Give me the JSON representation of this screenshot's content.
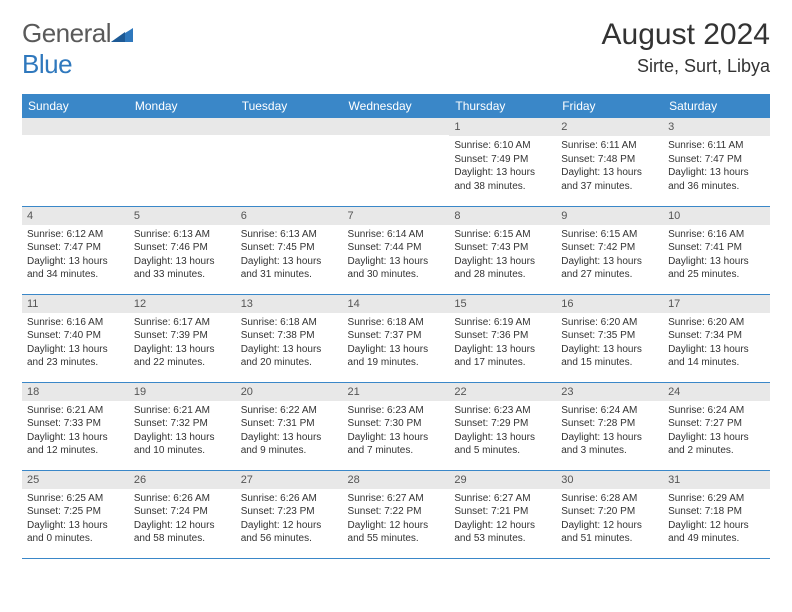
{
  "logo": {
    "text1": "General",
    "text2": "Blue"
  },
  "colors": {
    "header_bg": "#3a87c8",
    "header_text": "#ffffff",
    "daynum_bg": "#e8e8e8",
    "row_border": "#3a87c8",
    "logo_gray": "#5a5a5a",
    "logo_blue": "#2f78bd"
  },
  "title": "August 2024",
  "location": "Sirte, Surt, Libya",
  "weekdays": [
    "Sunday",
    "Monday",
    "Tuesday",
    "Wednesday",
    "Thursday",
    "Friday",
    "Saturday"
  ],
  "weeks": [
    [
      {
        "day": "",
        "sunrise": "",
        "sunset": "",
        "daylight": ""
      },
      {
        "day": "",
        "sunrise": "",
        "sunset": "",
        "daylight": ""
      },
      {
        "day": "",
        "sunrise": "",
        "sunset": "",
        "daylight": ""
      },
      {
        "day": "",
        "sunrise": "",
        "sunset": "",
        "daylight": ""
      },
      {
        "day": "1",
        "sunrise": "Sunrise: 6:10 AM",
        "sunset": "Sunset: 7:49 PM",
        "daylight": "Daylight: 13 hours and 38 minutes."
      },
      {
        "day": "2",
        "sunrise": "Sunrise: 6:11 AM",
        "sunset": "Sunset: 7:48 PM",
        "daylight": "Daylight: 13 hours and 37 minutes."
      },
      {
        "day": "3",
        "sunrise": "Sunrise: 6:11 AM",
        "sunset": "Sunset: 7:47 PM",
        "daylight": "Daylight: 13 hours and 36 minutes."
      }
    ],
    [
      {
        "day": "4",
        "sunrise": "Sunrise: 6:12 AM",
        "sunset": "Sunset: 7:47 PM",
        "daylight": "Daylight: 13 hours and 34 minutes."
      },
      {
        "day": "5",
        "sunrise": "Sunrise: 6:13 AM",
        "sunset": "Sunset: 7:46 PM",
        "daylight": "Daylight: 13 hours and 33 minutes."
      },
      {
        "day": "6",
        "sunrise": "Sunrise: 6:13 AM",
        "sunset": "Sunset: 7:45 PM",
        "daylight": "Daylight: 13 hours and 31 minutes."
      },
      {
        "day": "7",
        "sunrise": "Sunrise: 6:14 AM",
        "sunset": "Sunset: 7:44 PM",
        "daylight": "Daylight: 13 hours and 30 minutes."
      },
      {
        "day": "8",
        "sunrise": "Sunrise: 6:15 AM",
        "sunset": "Sunset: 7:43 PM",
        "daylight": "Daylight: 13 hours and 28 minutes."
      },
      {
        "day": "9",
        "sunrise": "Sunrise: 6:15 AM",
        "sunset": "Sunset: 7:42 PM",
        "daylight": "Daylight: 13 hours and 27 minutes."
      },
      {
        "day": "10",
        "sunrise": "Sunrise: 6:16 AM",
        "sunset": "Sunset: 7:41 PM",
        "daylight": "Daylight: 13 hours and 25 minutes."
      }
    ],
    [
      {
        "day": "11",
        "sunrise": "Sunrise: 6:16 AM",
        "sunset": "Sunset: 7:40 PM",
        "daylight": "Daylight: 13 hours and 23 minutes."
      },
      {
        "day": "12",
        "sunrise": "Sunrise: 6:17 AM",
        "sunset": "Sunset: 7:39 PM",
        "daylight": "Daylight: 13 hours and 22 minutes."
      },
      {
        "day": "13",
        "sunrise": "Sunrise: 6:18 AM",
        "sunset": "Sunset: 7:38 PM",
        "daylight": "Daylight: 13 hours and 20 minutes."
      },
      {
        "day": "14",
        "sunrise": "Sunrise: 6:18 AM",
        "sunset": "Sunset: 7:37 PM",
        "daylight": "Daylight: 13 hours and 19 minutes."
      },
      {
        "day": "15",
        "sunrise": "Sunrise: 6:19 AM",
        "sunset": "Sunset: 7:36 PM",
        "daylight": "Daylight: 13 hours and 17 minutes."
      },
      {
        "day": "16",
        "sunrise": "Sunrise: 6:20 AM",
        "sunset": "Sunset: 7:35 PM",
        "daylight": "Daylight: 13 hours and 15 minutes."
      },
      {
        "day": "17",
        "sunrise": "Sunrise: 6:20 AM",
        "sunset": "Sunset: 7:34 PM",
        "daylight": "Daylight: 13 hours and 14 minutes."
      }
    ],
    [
      {
        "day": "18",
        "sunrise": "Sunrise: 6:21 AM",
        "sunset": "Sunset: 7:33 PM",
        "daylight": "Daylight: 13 hours and 12 minutes."
      },
      {
        "day": "19",
        "sunrise": "Sunrise: 6:21 AM",
        "sunset": "Sunset: 7:32 PM",
        "daylight": "Daylight: 13 hours and 10 minutes."
      },
      {
        "day": "20",
        "sunrise": "Sunrise: 6:22 AM",
        "sunset": "Sunset: 7:31 PM",
        "daylight": "Daylight: 13 hours and 9 minutes."
      },
      {
        "day": "21",
        "sunrise": "Sunrise: 6:23 AM",
        "sunset": "Sunset: 7:30 PM",
        "daylight": "Daylight: 13 hours and 7 minutes."
      },
      {
        "day": "22",
        "sunrise": "Sunrise: 6:23 AM",
        "sunset": "Sunset: 7:29 PM",
        "daylight": "Daylight: 13 hours and 5 minutes."
      },
      {
        "day": "23",
        "sunrise": "Sunrise: 6:24 AM",
        "sunset": "Sunset: 7:28 PM",
        "daylight": "Daylight: 13 hours and 3 minutes."
      },
      {
        "day": "24",
        "sunrise": "Sunrise: 6:24 AM",
        "sunset": "Sunset: 7:27 PM",
        "daylight": "Daylight: 13 hours and 2 minutes."
      }
    ],
    [
      {
        "day": "25",
        "sunrise": "Sunrise: 6:25 AM",
        "sunset": "Sunset: 7:25 PM",
        "daylight": "Daylight: 13 hours and 0 minutes."
      },
      {
        "day": "26",
        "sunrise": "Sunrise: 6:26 AM",
        "sunset": "Sunset: 7:24 PM",
        "daylight": "Daylight: 12 hours and 58 minutes."
      },
      {
        "day": "27",
        "sunrise": "Sunrise: 6:26 AM",
        "sunset": "Sunset: 7:23 PM",
        "daylight": "Daylight: 12 hours and 56 minutes."
      },
      {
        "day": "28",
        "sunrise": "Sunrise: 6:27 AM",
        "sunset": "Sunset: 7:22 PM",
        "daylight": "Daylight: 12 hours and 55 minutes."
      },
      {
        "day": "29",
        "sunrise": "Sunrise: 6:27 AM",
        "sunset": "Sunset: 7:21 PM",
        "daylight": "Daylight: 12 hours and 53 minutes."
      },
      {
        "day": "30",
        "sunrise": "Sunrise: 6:28 AM",
        "sunset": "Sunset: 7:20 PM",
        "daylight": "Daylight: 12 hours and 51 minutes."
      },
      {
        "day": "31",
        "sunrise": "Sunrise: 6:29 AM",
        "sunset": "Sunset: 7:18 PM",
        "daylight": "Daylight: 12 hours and 49 minutes."
      }
    ]
  ]
}
